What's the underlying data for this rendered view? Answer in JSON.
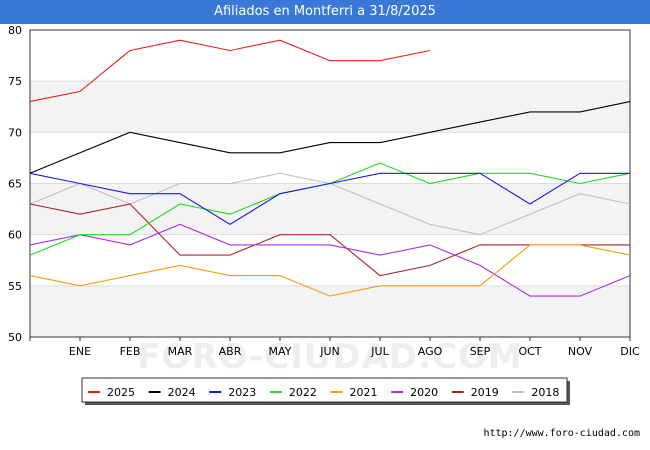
{
  "chart_data": {
    "type": "line",
    "title": "Afiliados en Montferri a 31/8/2025",
    "x_categories": [
      "",
      "ENE",
      "FEB",
      "MAR",
      "ABR",
      "MAY",
      "JUN",
      "JUL",
      "AGO",
      "SEP",
      "OCT",
      "NOV",
      "DIC"
    ],
    "ylim": [
      50,
      80
    ],
    "yticks": [
      50,
      55,
      60,
      65,
      70,
      75,
      80
    ],
    "grid": true,
    "legend_position": "bottom",
    "watermark": "FORO-CIUDAD.COM",
    "series": [
      {
        "name": "2025",
        "color": "#e8201e",
        "values": [
          73,
          74,
          78,
          79,
          78,
          79,
          77,
          77,
          78
        ]
      },
      {
        "name": "2024",
        "color": "#000000",
        "values": [
          66,
          68,
          70,
          69,
          68,
          68,
          69,
          69,
          70,
          71,
          72,
          72,
          73
        ]
      },
      {
        "name": "2023",
        "color": "#1a1ae0",
        "values": [
          66,
          65,
          64,
          64,
          61,
          64,
          65,
          66,
          66,
          66,
          63,
          66,
          66
        ]
      },
      {
        "name": "2022",
        "color": "#22d822",
        "values": [
          58,
          60,
          60,
          63,
          62,
          64,
          65,
          67,
          65,
          66,
          66,
          65,
          66
        ]
      },
      {
        "name": "2021",
        "color": "#f0a010",
        "values": [
          56,
          55,
          56,
          57,
          56,
          56,
          54,
          55,
          55,
          55,
          59,
          59,
          58
        ]
      },
      {
        "name": "2020",
        "color": "#a830e0",
        "values": [
          59,
          60,
          59,
          61,
          59,
          59,
          59,
          58,
          59,
          57,
          54,
          54,
          56
        ]
      },
      {
        "name": "2019",
        "color": "#a82828",
        "values": [
          63,
          62,
          63,
          58,
          58,
          60,
          60,
          56,
          57,
          59,
          59,
          59,
          59
        ]
      },
      {
        "name": "2018",
        "color": "#c0c0c0",
        "values": [
          63,
          65,
          63,
          65,
          65,
          66,
          65,
          63,
          61,
          60,
          62,
          64,
          63
        ]
      }
    ]
  },
  "source": "http://www.foro-ciudad.com"
}
